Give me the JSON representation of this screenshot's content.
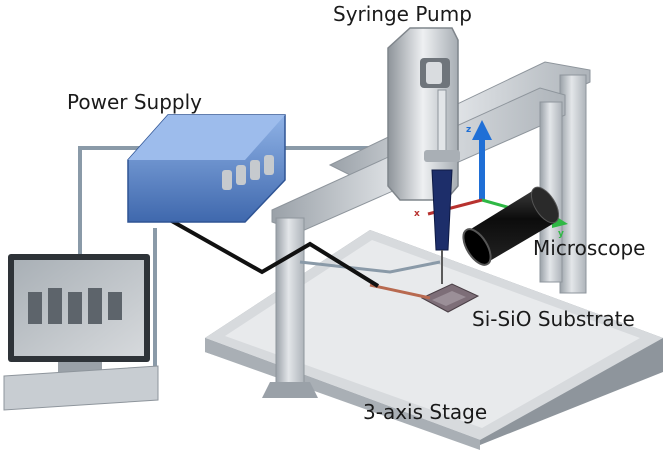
{
  "labels": {
    "syringe_pump": "Syringe Pump",
    "power_supply": "Power Supply",
    "microscope": "Microscope",
    "substrate": "Si-SiO Substrate",
    "stage": "3-axis Stage"
  },
  "axes": {
    "x": "x",
    "y": "y",
    "z": "z"
  },
  "colors": {
    "frame": "#c9ced3",
    "frame_dark": "#8e959c",
    "stage": "#dadddf",
    "power_supply": "#5c84c4",
    "z_axis": "#1f6fd6",
    "y_axis": "#2fb845",
    "x_axis": "#b8322f",
    "cable": "#111111",
    "wire": "#8a9aa8"
  }
}
